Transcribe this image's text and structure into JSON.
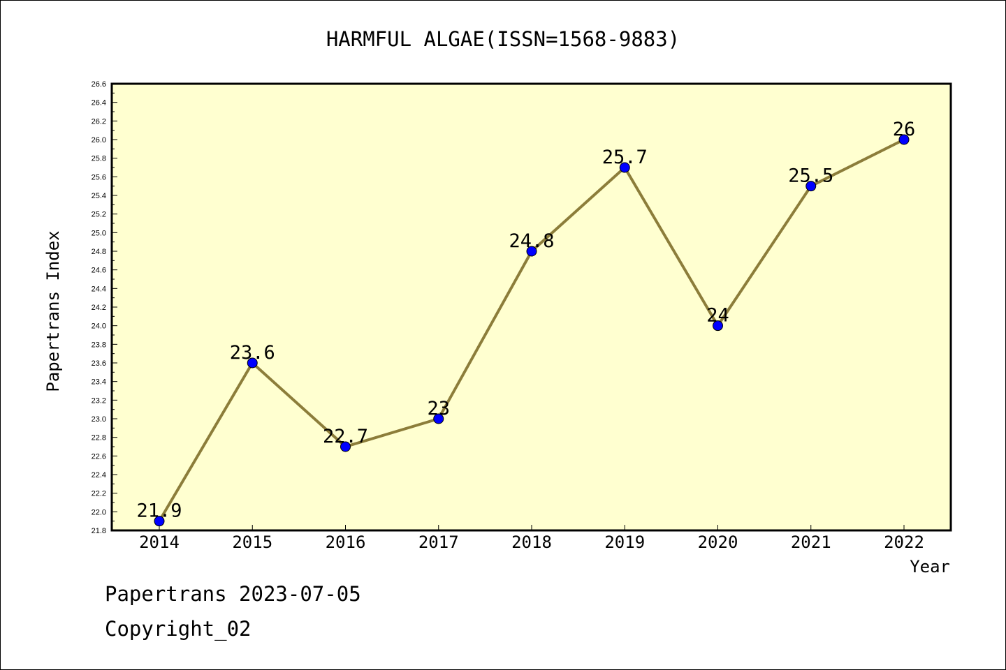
{
  "chart_data": {
    "type": "line",
    "title": "HARMFUL ALGAE(ISSN=1568-9883)",
    "xlabel": "Year",
    "ylabel": "Papertrans Index",
    "categories": [
      "2014",
      "2015",
      "2016",
      "2017",
      "2018",
      "2019",
      "2020",
      "2021",
      "2022"
    ],
    "series": [
      {
        "values": [
          21.9,
          23.6,
          22.7,
          23.0,
          24.8,
          25.7,
          24.0,
          25.5,
          26.0
        ]
      }
    ],
    "data_labels": [
      "21.9",
      "23.6",
      "22.7",
      "23",
      "24.8",
      "25.7",
      "24",
      "25.5",
      "26"
    ],
    "ylim": [
      21.8,
      26.6
    ],
    "yticks": [
      "21.8",
      "22.0",
      "22.2",
      "22.4",
      "22.6",
      "22.8",
      "23.0",
      "23.2",
      "23.4",
      "23.6",
      "23.8",
      "24.0",
      "24.2",
      "24.4",
      "24.6",
      "24.8",
      "25.0",
      "25.2",
      "25.4",
      "25.6",
      "25.8",
      "26.0",
      "26.2",
      "26.4",
      "26.6"
    ],
    "grid": false,
    "colors": {
      "plot_background": "#ffffd0",
      "line": "#8c7d3a",
      "marker": "#0000ff"
    }
  },
  "footer": {
    "line1": "Papertrans 2023-07-05",
    "line2": "Copyright_02"
  }
}
